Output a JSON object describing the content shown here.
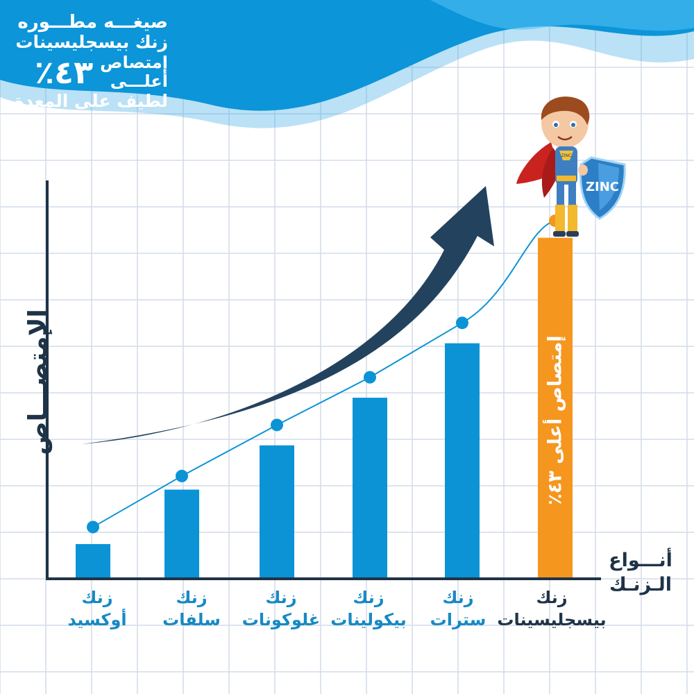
{
  "headline": {
    "line1": "صيغـــه مطـــوره",
    "line2": "زنك بيسجليسينات",
    "percent": "٤٣٪",
    "word_absorption": "إمتصاص",
    "word_higher": "أعلـــى",
    "line4": "لطيف على المعدة"
  },
  "colors": {
    "bar": "#0b93d6",
    "highlight_bar": "#f5961f",
    "axis": "#1f3347",
    "arrow": "#23425e",
    "wave": "#3aa8e6",
    "grid": "#d2dcea"
  },
  "hero": {
    "shield_text": "ZINC",
    "chest_text": "ZINC"
  },
  "chart_data": {
    "type": "bar",
    "title": "",
    "ylabel": "الإمتصـــاص",
    "xlabel": "أنـــواع الـزنـك",
    "categories": [
      {
        "line1": "زنك",
        "line2": "أوكسيد"
      },
      {
        "line1": "زنك",
        "line2": "سلفات"
      },
      {
        "line1": "زنك",
        "line2": "غلوكونات"
      },
      {
        "line1": "زنك",
        "line2": "بيكولينات"
      },
      {
        "line1": "زنك",
        "line2": "سترات"
      },
      {
        "line1": "زنك",
        "line2": "بيسجليسينات"
      }
    ],
    "values": [
      10,
      26,
      39,
      53,
      69,
      100
    ],
    "trend_values": [
      15,
      30,
      45,
      59,
      75,
      105
    ],
    "highlight_index": 5,
    "highlight_label": "إمتصاص أعلى ٤٣٪",
    "ylim": [
      0,
      125
    ],
    "grid": true,
    "trend_arrow": true
  }
}
